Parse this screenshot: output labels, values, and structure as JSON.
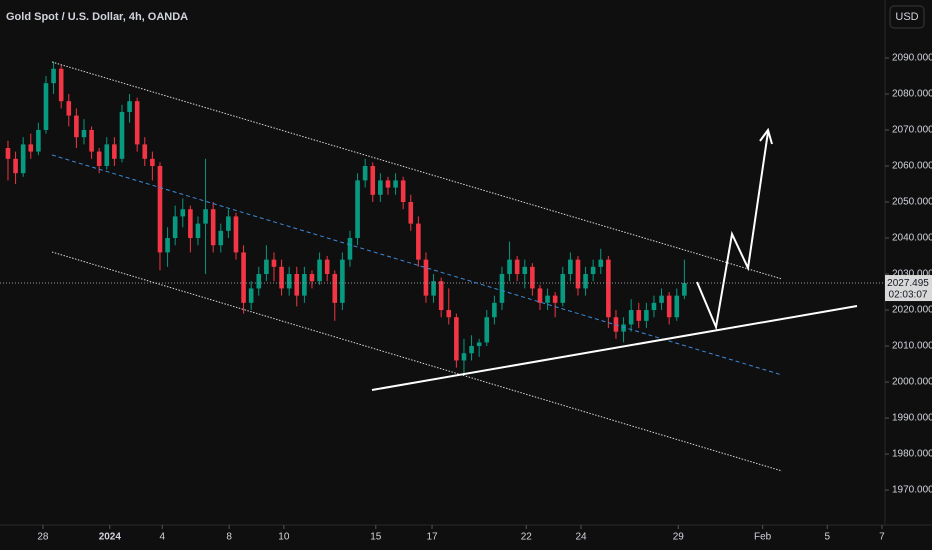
{
  "chart_data": {
    "type": "candlestick",
    "title": "Gold Spot / U.S. Dollar, 4h, OANDA",
    "currency": "USD",
    "countdown": "02:03:07",
    "up_color": "#089981",
    "down_color": "#f23645",
    "grid": false,
    "ohlc": [
      [
        2065,
        2067,
        2056,
        2062
      ],
      [
        2062,
        2064,
        2055,
        2058
      ],
      [
        2058,
        2068,
        2057,
        2066
      ],
      [
        2066,
        2069,
        2062,
        2064
      ],
      [
        2064,
        2072,
        2063,
        2070
      ],
      [
        2070,
        2085,
        2069,
        2083
      ],
      [
        2083,
        2089,
        2080,
        2087
      ],
      [
        2087,
        2088,
        2076,
        2078
      ],
      [
        2078,
        2080,
        2071,
        2074
      ],
      [
        2074,
        2076,
        2065,
        2068
      ],
      [
        2068,
        2073,
        2066,
        2070
      ],
      [
        2070,
        2071,
        2062,
        2064
      ],
      [
        2064,
        2065,
        2058,
        2060
      ],
      [
        2060,
        2068,
        2059,
        2066
      ],
      [
        2066,
        2068,
        2060,
        2062
      ],
      [
        2062,
        2077,
        2061,
        2075
      ],
      [
        2075,
        2080,
        2072,
        2078
      ],
      [
        2078,
        2079,
        2064,
        2066
      ],
      [
        2066,
        2068,
        2060,
        2062
      ],
      [
        2062,
        2064,
        2056,
        2060
      ],
      [
        2060,
        2061,
        2031,
        2036
      ],
      [
        2036,
        2043,
        2032,
        2040
      ],
      [
        2040,
        2049,
        2038,
        2046
      ],
      [
        2046,
        2051,
        2043,
        2048
      ],
      [
        2048,
        2049,
        2036,
        2040
      ],
      [
        2040,
        2046,
        2038,
        2044
      ],
      [
        2044,
        2062,
        2030,
        2048
      ],
      [
        2048,
        2050,
        2036,
        2038
      ],
      [
        2038,
        2044,
        2036,
        2042
      ],
      [
        2042,
        2048,
        2040,
        2046
      ],
      [
        2046,
        2047,
        2034,
        2036
      ],
      [
        2036,
        2038,
        2019,
        2022
      ],
      [
        2022,
        2028,
        2020,
        2026
      ],
      [
        2026,
        2032,
        2024,
        2030
      ],
      [
        2030,
        2038,
        2028,
        2034
      ],
      [
        2034,
        2036,
        2028,
        2032
      ],
      [
        2032,
        2034,
        2024,
        2026
      ],
      [
        2026,
        2032,
        2024,
        2030
      ],
      [
        2030,
        2032,
        2021,
        2024
      ],
      [
        2024,
        2032,
        2022,
        2030
      ],
      [
        2030,
        2031,
        2026,
        2028
      ],
      [
        2028,
        2036,
        2027,
        2034
      ],
      [
        2034,
        2035,
        2028,
        2030
      ],
      [
        2030,
        2031,
        2017,
        2022
      ],
      [
        2022,
        2036,
        2020,
        2034
      ],
      [
        2034,
        2042,
        2032,
        2040
      ],
      [
        2040,
        2058,
        2038,
        2056
      ],
      [
        2056,
        2062,
        2054,
        2060
      ],
      [
        2060,
        2061,
        2050,
        2052
      ],
      [
        2052,
        2058,
        2050,
        2056
      ],
      [
        2056,
        2057,
        2052,
        2054
      ],
      [
        2054,
        2058,
        2052,
        2056
      ],
      [
        2056,
        2057,
        2048,
        2050
      ],
      [
        2050,
        2052,
        2042,
        2044
      ],
      [
        2044,
        2046,
        2032,
        2034
      ],
      [
        2034,
        2036,
        2022,
        2024
      ],
      [
        2024,
        2030,
        2022,
        2028
      ],
      [
        2028,
        2029,
        2018,
        2020
      ],
      [
        2020,
        2026,
        2016,
        2018
      ],
      [
        2018,
        2019,
        2004,
        2006
      ],
      [
        2006,
        2012,
        2002,
        2008
      ],
      [
        2008,
        2013,
        2006,
        2010
      ],
      [
        2010,
        2012,
        2007,
        2011
      ],
      [
        2011,
        2020,
        2010,
        2018
      ],
      [
        2018,
        2024,
        2016,
        2022
      ],
      [
        2022,
        2032,
        2020,
        2030
      ],
      [
        2030,
        2039,
        2028,
        2034
      ],
      [
        2034,
        2035,
        2028,
        2030
      ],
      [
        2030,
        2034,
        2026,
        2032
      ],
      [
        2032,
        2033,
        2024,
        2026
      ],
      [
        2026,
        2027,
        2020,
        2022
      ],
      [
        2022,
        2026,
        2020,
        2024
      ],
      [
        2024,
        2025,
        2018,
        2022
      ],
      [
        2022,
        2032,
        2021,
        2030
      ],
      [
        2030,
        2036,
        2028,
        2034
      ],
      [
        2034,
        2035,
        2024,
        2026
      ],
      [
        2026,
        2032,
        2024,
        2030
      ],
      [
        2030,
        2034,
        2028,
        2032
      ],
      [
        2032,
        2037,
        2030,
        2034
      ],
      [
        2034,
        2035,
        2015,
        2018
      ],
      [
        2018,
        2020,
        2012,
        2014
      ],
      [
        2014,
        2018,
        2011,
        2016
      ],
      [
        2016,
        2023,
        2014,
        2020
      ],
      [
        2020,
        2022,
        2015,
        2017
      ],
      [
        2017,
        2022,
        2015,
        2020
      ],
      [
        2020,
        2024,
        2018,
        2022
      ],
      [
        2022,
        2026,
        2020,
        2024
      ],
      [
        2024,
        2025,
        2016,
        2018
      ],
      [
        2018,
        2026,
        2017,
        2024
      ],
      [
        2024,
        2034,
        2023,
        2027.495
      ]
    ],
    "ylim": [
      1960.3,
      2106.1
    ],
    "yticks": [
      {
        "value": 1970,
        "label": "1970.000"
      },
      {
        "value": 1980,
        "label": "1980.000"
      },
      {
        "value": 1990,
        "label": "1990.000"
      },
      {
        "value": 2000,
        "label": "2000.000"
      },
      {
        "value": 2010,
        "label": "2010.000"
      },
      {
        "value": 2020,
        "label": "2020.000"
      },
      {
        "value": 2030,
        "label": "2030.000"
      },
      {
        "value": 2040,
        "label": "2040.000"
      },
      {
        "value": 2050,
        "label": "2050.000"
      },
      {
        "value": 2060,
        "label": "2060.000"
      },
      {
        "value": 2070,
        "label": "2070.000"
      },
      {
        "value": 2080,
        "label": "2080.000"
      },
      {
        "value": 2090,
        "label": "2090.000"
      }
    ],
    "xlim": [
      -1.05,
      115.4
    ],
    "xticks": [
      {
        "value": 4.6,
        "label": "28"
      },
      {
        "value": 13.4,
        "label": "2024"
      },
      {
        "value": 20.3,
        "label": "4"
      },
      {
        "value": 29.1,
        "label": "8"
      },
      {
        "value": 36.3,
        "label": "10"
      },
      {
        "value": 48.4,
        "label": "15"
      },
      {
        "value": 55.8,
        "label": "17"
      },
      {
        "value": 68.2,
        "label": "22"
      },
      {
        "value": 75.4,
        "label": "24"
      },
      {
        "value": 88.2,
        "label": "29"
      },
      {
        "value": 99.3,
        "label": "Feb"
      },
      {
        "value": 107.8,
        "label": "5"
      },
      {
        "value": 115.0,
        "label": "7"
      }
    ]
  }
}
